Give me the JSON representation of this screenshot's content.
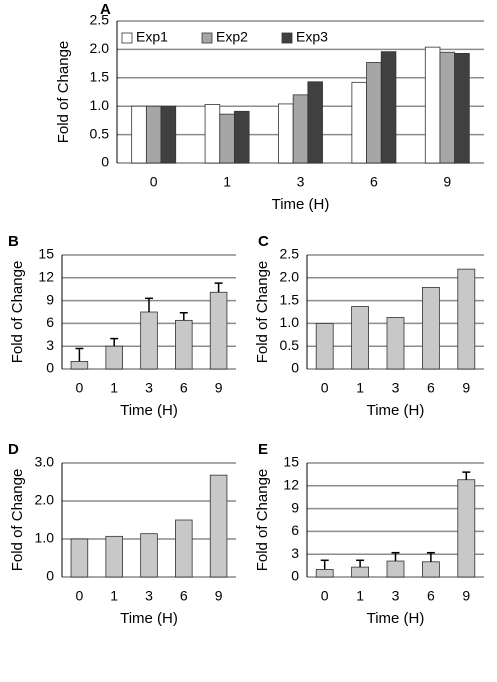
{
  "chart_data": [
    {
      "type": "bar",
      "panel_label": "A",
      "xlabel": "Time (H)",
      "ylabel": "Fold of Change",
      "categories": [
        "0",
        "1",
        "3",
        "6",
        "9"
      ],
      "series": [
        {
          "name": "Exp1",
          "color": "#ffffff",
          "values": [
            1.0,
            1.03,
            1.04,
            1.42,
            2.04
          ]
        },
        {
          "name": "Exp2",
          "color": "#a6a6a6",
          "values": [
            1.0,
            0.86,
            1.2,
            1.77,
            1.95
          ]
        },
        {
          "name": "Exp3",
          "color": "#404040",
          "values": [
            1.0,
            0.91,
            1.43,
            1.96,
            1.93
          ]
        }
      ],
      "ylim": [
        0,
        2.5
      ],
      "yticks": [
        0,
        0.5,
        {
          "value": 1,
          "label": "1.0"
        },
        1.5,
        {
          "value": 2,
          "label": "2.0"
        },
        2.5
      ],
      "grid": true,
      "legend": "upper left"
    },
    {
      "type": "bar",
      "panel_label": "B",
      "xlabel": "Time (H)",
      "ylabel": "Fold of Change",
      "categories": [
        "0",
        "1",
        "3",
        "6",
        "9"
      ],
      "color": "#c8c8c8",
      "values": [
        1.0,
        3.0,
        7.5,
        6.4,
        10.1
      ],
      "errors": [
        1.7,
        1.0,
        1.8,
        1.0,
        1.2
      ],
      "ylim": [
        0,
        15
      ],
      "yticks": [
        0,
        3,
        6,
        9,
        12,
        15
      ],
      "grid": true
    },
    {
      "type": "bar",
      "panel_label": "C",
      "xlabel": "Time (H)",
      "ylabel": "Fold of Change",
      "categories": [
        "0",
        "1",
        "3",
        "6",
        "9"
      ],
      "color": "#c8c8c8",
      "values": [
        1.0,
        1.37,
        1.13,
        1.79,
        2.19
      ],
      "ylim": [
        0,
        2.5
      ],
      "yticks": [
        0,
        0.5,
        {
          "value": 1,
          "label": "1.0"
        },
        1.5,
        {
          "value": 2,
          "label": "2.0"
        },
        2.5
      ],
      "grid": true
    },
    {
      "type": "bar",
      "panel_label": "D",
      "xlabel": "Time (H)",
      "ylabel": "Fold of Change",
      "categories": [
        "0",
        "1",
        "3",
        "6",
        "9"
      ],
      "color": "#c8c8c8",
      "values": [
        1.0,
        1.07,
        1.14,
        1.5,
        2.68
      ],
      "ylim": [
        0,
        3
      ],
      "yticks": [
        0,
        {
          "value": 1,
          "label": "1.0"
        },
        {
          "value": 2,
          "label": "2.0"
        },
        {
          "value": 3,
          "label": "3.0"
        }
      ],
      "grid": true
    },
    {
      "type": "bar",
      "panel_label": "E",
      "xlabel": "Time (H)",
      "ylabel": "Fold of Change",
      "categories": [
        "0",
        "1",
        "3",
        "6",
        "9"
      ],
      "color": "#c8c8c8",
      "values": [
        1.0,
        1.3,
        2.1,
        2.0,
        12.8
      ],
      "errors": [
        1.2,
        0.9,
        1.1,
        1.2,
        1.0
      ],
      "ylim": [
        0,
        15
      ],
      "yticks": [
        0,
        3,
        6,
        9,
        12,
        15
      ],
      "grid": true
    }
  ]
}
